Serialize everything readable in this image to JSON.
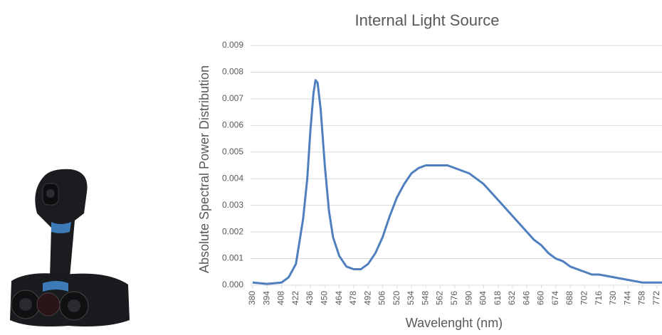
{
  "chart_data": {
    "type": "line",
    "title": "Internal Light Source",
    "y_label": "Absolute Spectral Power Distribution",
    "x_label": "Wavelenght (nm)",
    "x": [
      380,
      394,
      408,
      415,
      422,
      429,
      433,
      436,
      439,
      441,
      443,
      446,
      450,
      454,
      458,
      464,
      471,
      478,
      485,
      492,
      499,
      506,
      513,
      520,
      527,
      534,
      541,
      548,
      555,
      562,
      569,
      576,
      583,
      590,
      597,
      604,
      611,
      618,
      625,
      632,
      639,
      646,
      653,
      660,
      667,
      674,
      681,
      688,
      695,
      702,
      709,
      716,
      730,
      744,
      758,
      772,
      777
    ],
    "series": [
      {
        "color": "#4f7fbf",
        "values": [
          0.0001,
          5e-05,
          0.0001,
          0.0003,
          0.0008,
          0.0025,
          0.004,
          0.0058,
          0.0072,
          0.0077,
          0.0076,
          0.0066,
          0.0045,
          0.0028,
          0.0018,
          0.0011,
          0.0007,
          0.0006,
          0.0006,
          0.0008,
          0.0012,
          0.0018,
          0.0026,
          0.0033,
          0.0038,
          0.0042,
          0.0044,
          0.0045,
          0.0045,
          0.0045,
          0.0045,
          0.0044,
          0.0043,
          0.0042,
          0.004,
          0.0038,
          0.0035,
          0.0032,
          0.0029,
          0.0026,
          0.0023,
          0.002,
          0.0017,
          0.0015,
          0.0012,
          0.001,
          0.0009,
          0.0007,
          0.0006,
          0.0005,
          0.0004,
          0.0004,
          0.0003,
          0.0002,
          0.0001,
          0.0001,
          0.0001
        ]
      }
    ],
    "xlim": [
      378,
      777
    ],
    "xticks": [
      380,
      394,
      408,
      422,
      436,
      450,
      464,
      478,
      492,
      506,
      520,
      534,
      548,
      562,
      576,
      590,
      604,
      618,
      632,
      646,
      660,
      674,
      688,
      702,
      716,
      730,
      744,
      758,
      772
    ],
    "ylim": [
      0,
      0.009
    ],
    "yticks": [
      {
        "value": 0,
        "label": "0.000"
      },
      0.001,
      0.002,
      0.003,
      0.004,
      0.005,
      0.006,
      0.007,
      0.008,
      0.009
    ],
    "grid": true
  }
}
